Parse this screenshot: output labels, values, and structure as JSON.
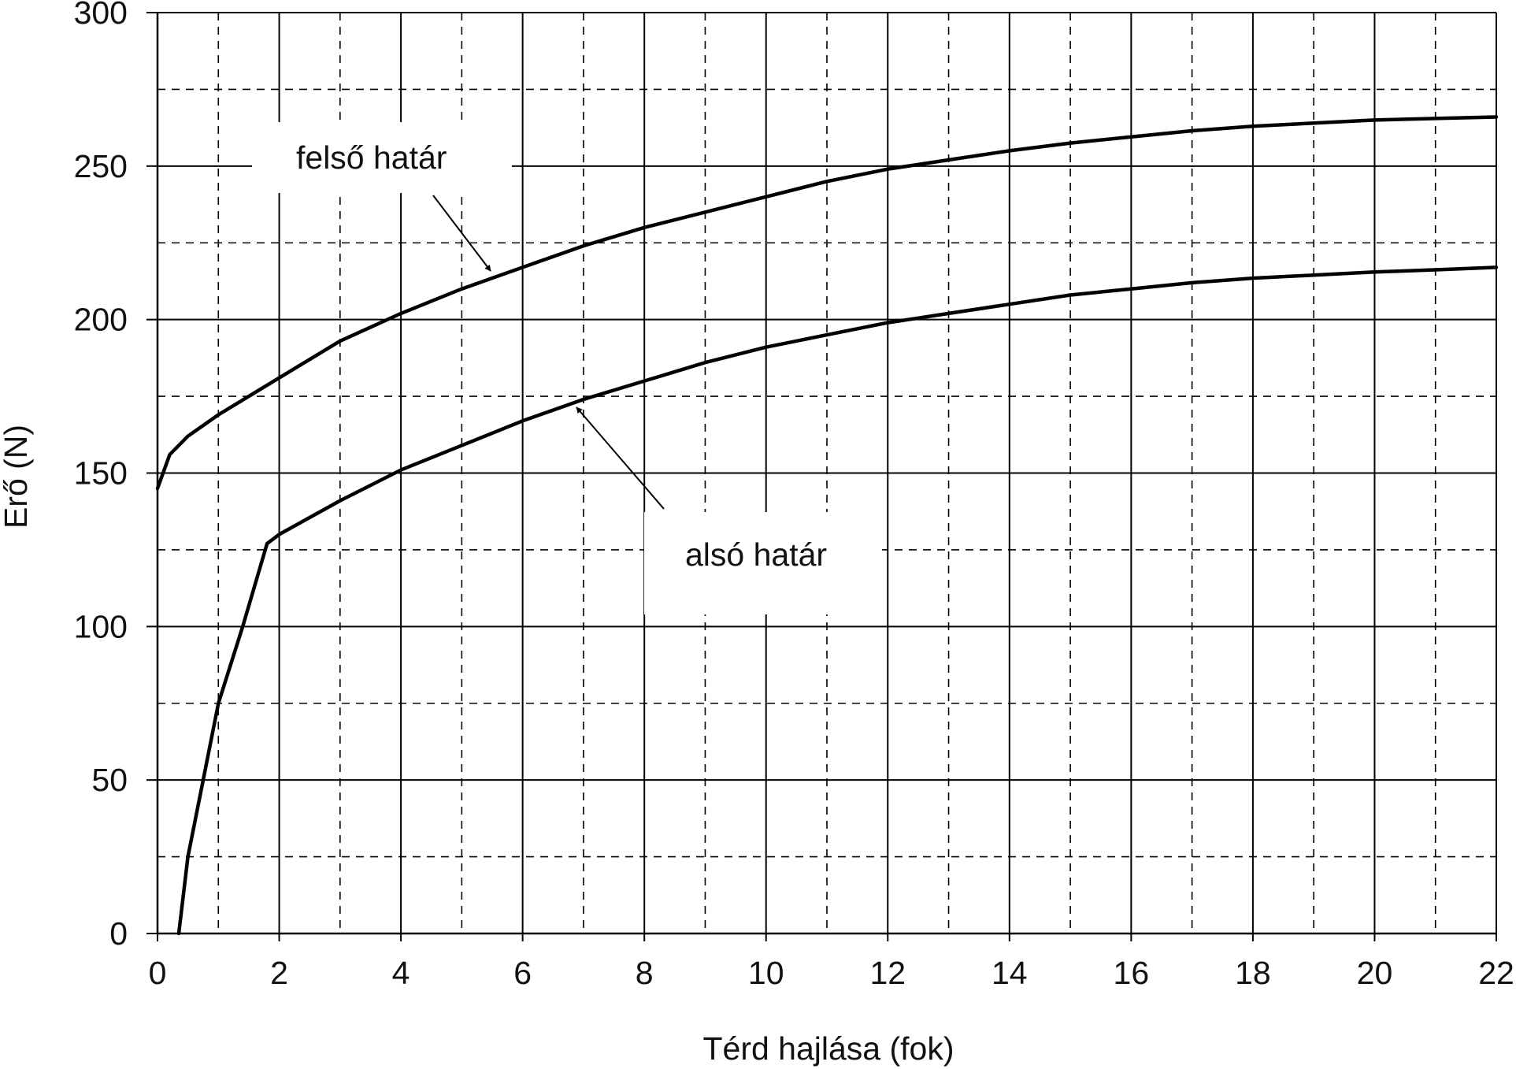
{
  "chart_data": {
    "type": "line",
    "xlabel": "Térd hajlása (fok)",
    "ylabel": "Erő (N)",
    "xlim": [
      0,
      22
    ],
    "ylim": [
      0,
      300
    ],
    "xticks": [
      0,
      2,
      4,
      6,
      8,
      10,
      12,
      14,
      16,
      18,
      20,
      22
    ],
    "yticks": [
      0,
      50,
      100,
      150,
      200,
      250,
      300
    ],
    "grid": {
      "major": "solid",
      "minor": "dashed",
      "x_minor_step": 1,
      "y_minor_step": 25
    },
    "series": [
      {
        "name": "felső határ",
        "x": [
          0,
          0.2,
          0.5,
          1,
          1.5,
          2,
          3,
          4,
          5,
          6,
          7,
          8,
          9,
          10,
          11,
          12,
          13,
          14,
          15,
          16,
          17,
          18,
          19,
          20,
          21,
          22
        ],
        "y": [
          145,
          156,
          162,
          169,
          175,
          181,
          193,
          202,
          210,
          217,
          224,
          230,
          235,
          240,
          245,
          249,
          252,
          255,
          257.5,
          259.5,
          261.5,
          263,
          264,
          265,
          265.5,
          266
        ]
      },
      {
        "name": "alsó határ",
        "x": [
          0.35,
          0.5,
          0.75,
          1,
          1.4,
          1.8,
          2,
          3,
          4,
          5,
          6,
          7,
          8,
          9,
          10,
          11,
          12,
          13,
          14,
          15,
          16,
          17,
          18,
          19,
          20,
          21,
          22
        ],
        "y": [
          0,
          25,
          50,
          75,
          100,
          127,
          130,
          141,
          151,
          159,
          167,
          174,
          180,
          186,
          191,
          195,
          199,
          202,
          205,
          208,
          210,
          212,
          213.5,
          214.5,
          215.5,
          216.2,
          217
        ]
      }
    ],
    "annotations": [
      {
        "text": "felső határ",
        "series": 0
      },
      {
        "text": "alsó határ",
        "series": 1
      }
    ]
  }
}
